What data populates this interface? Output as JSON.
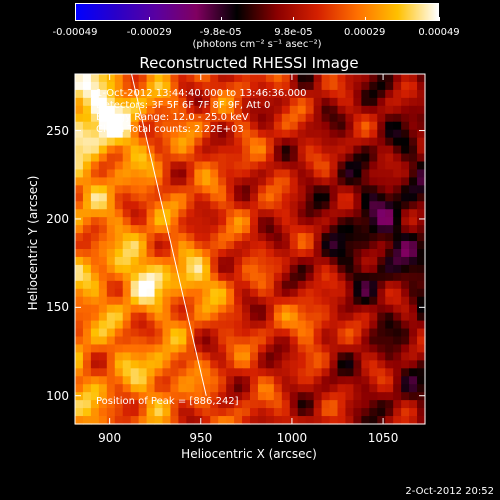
{
  "colorbar": {
    "colors": [
      "#0000ff",
      "#2a00c8",
      "#5a00a0",
      "#800060",
      "#000000",
      "#8b0000",
      "#d42000",
      "#ff7000",
      "#ffc000",
      "#ffffff"
    ],
    "tick_labels": [
      "-0.00049",
      "-0.00029",
      "-9.8e-05",
      "9.8e-05",
      "0.00029",
      "0.00049"
    ],
    "tick_values": [
      -0.00049,
      -0.00029,
      -9.8e-05,
      9.8e-05,
      0.00029,
      0.00049
    ],
    "range": [
      -0.00049,
      0.00049
    ],
    "unit_label": "(photons cm⁻² s⁻¹ asec⁻²)"
  },
  "chart_data": {
    "type": "heatmap",
    "title": "Reconstructed RHESSI Image",
    "xlabel": "Heliocentric X (arcsec)",
    "ylabel": "Heliocentric Y (arcsec)",
    "xlim": [
      881,
      1073
    ],
    "ylim": [
      84,
      282
    ],
    "xticks": [
      900,
      950,
      1000,
      1050
    ],
    "yticks": [
      100,
      150,
      200,
      250
    ],
    "limb_line": [
      [
        912,
        282
      ],
      [
        953,
        100
      ]
    ],
    "annotations": {
      "time_range": "1-Oct-2012 13:44:40.000 to 13:46:36.000",
      "detectors": "Detectors: 3F 5F 6F 7F 8F 9F, Att 0",
      "energy_range": "Energy Range: 12.0 - 25.0 keV",
      "method_counts": "Clean    Total counts: 2.22E+03",
      "position": "Position of Peak = [886,242]"
    }
  },
  "footer": {
    "timestamp": "2-Oct-2012 20:52"
  }
}
